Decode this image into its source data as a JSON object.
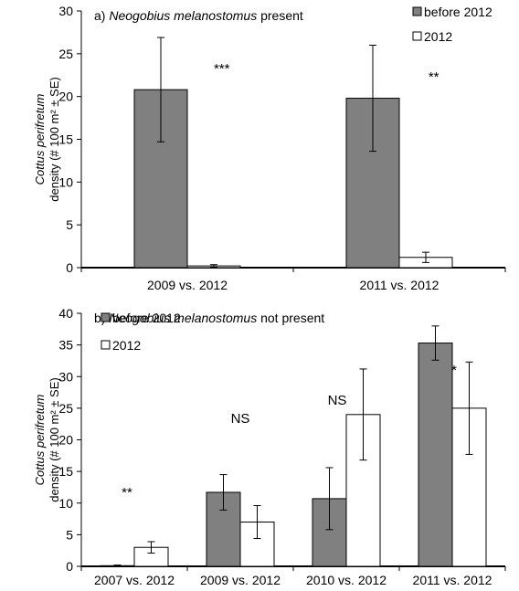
{
  "chart_data": [
    {
      "type": "bar",
      "panel": "a",
      "title_prefix": "a) ",
      "title_italic": "Neogobius melanostomus",
      "title_suffix": " present",
      "ylabel_italic": "Cottus perifretum",
      "ylabel_line2": "density (# 100 m² ± SE)",
      "ylim": [
        0,
        30
      ],
      "yticks": [
        0,
        5,
        10,
        15,
        20,
        25,
        30
      ],
      "categories": [
        "2009 vs. 2012",
        "2011 vs. 2012"
      ],
      "series": [
        {
          "name": "before 2012",
          "color": "#808080",
          "values": [
            20.8,
            19.8
          ],
          "se": [
            6.1,
            6.2
          ]
        },
        {
          "name": "2012",
          "color": "#ffffff",
          "values": [
            0.2,
            1.2
          ],
          "se": [
            0.15,
            0.6
          ]
        }
      ],
      "significance": [
        "***",
        "**"
      ],
      "legend_position": "top-right",
      "grid": false
    },
    {
      "type": "bar",
      "panel": "b",
      "title_prefix": "b) ",
      "title_italic": "Neogobius melanostomus",
      "title_suffix": " not present",
      "ylabel_italic": "Cottus perifretum",
      "ylabel_line2": "density (# 100 m² ± SE)",
      "ylim": [
        0,
        40
      ],
      "yticks": [
        0,
        5,
        10,
        15,
        20,
        25,
        30,
        35,
        40
      ],
      "categories": [
        "2007 vs. 2012",
        "2009 vs. 2012",
        "2010 vs. 2012",
        "2011 vs. 2012"
      ],
      "series": [
        {
          "name": "before 2012",
          "color": "#808080",
          "values": [
            0.1,
            11.7,
            10.7,
            35.3
          ],
          "se": [
            0.1,
            2.8,
            4.9,
            2.7
          ]
        },
        {
          "name": "2012",
          "color": "#ffffff",
          "values": [
            3.0,
            7.0,
            24.0,
            25.0
          ],
          "se": [
            0.9,
            2.6,
            7.2,
            7.3
          ]
        }
      ],
      "significance": [
        "**",
        "NS",
        "NS",
        "*"
      ],
      "legend_position": "top-left",
      "grid": false
    }
  ]
}
